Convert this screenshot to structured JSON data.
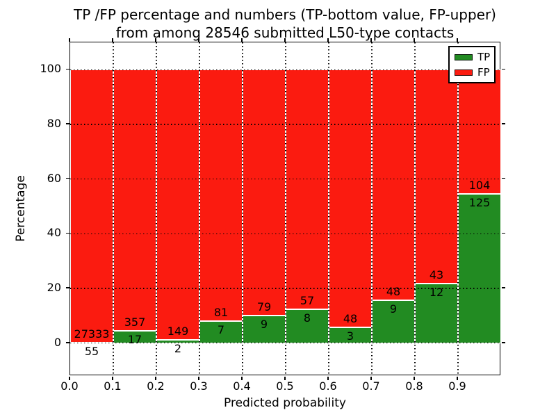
{
  "title": {
    "line1": "TP /FP percentage and numbers (TP-bottom value, FP-upper)",
    "line2": "from among 28546 submitted L50-type contacts"
  },
  "chart_data": {
    "type": "bar",
    "stacked": true,
    "normalized": "each bin scaled to 100%",
    "title": "TP /FP percentage and numbers (TP-bottom value, FP-upper) from among 28546 submitted L50-type contacts",
    "xlabel": "Predicted probability",
    "ylabel": "Percentage",
    "total_contacts": 28546,
    "bin_width": 0.1,
    "bin_starts": [
      0.0,
      0.1,
      0.2,
      0.3,
      0.4,
      0.5,
      0.6,
      0.7,
      0.8,
      0.9
    ],
    "series": [
      {
        "name": "TP",
        "color": "#228b22",
        "values": [
          55,
          17,
          2,
          7,
          9,
          8,
          3,
          9,
          12,
          125
        ]
      },
      {
        "name": "FP",
        "color": "#fb1b10",
        "values": [
          27333,
          357,
          149,
          81,
          79,
          57,
          48,
          48,
          43,
          104
        ]
      }
    ],
    "tp_percent_of_bin": [
      0.2,
      4.55,
      1.32,
      7.95,
      10.23,
      12.31,
      5.88,
      15.79,
      21.82,
      54.59
    ],
    "x_tick_labels": [
      "0.0",
      "0.1",
      "0.2",
      "0.3",
      "0.4",
      "0.5",
      "0.6",
      "0.7",
      "0.8",
      "0.9"
    ],
    "y_ticks": [
      0,
      20,
      40,
      60,
      80,
      100
    ],
    "xlim": [
      0.0,
      1.0
    ],
    "ylim": [
      -12,
      110
    ],
    "grid": true,
    "grid_style": "dotted black, drawn over bars",
    "bar_edge_color": "#ffffff",
    "legend": {
      "position": "upper right",
      "entries": [
        {
          "label": "TP",
          "color": "#228b22"
        },
        {
          "label": "FP",
          "color": "#fb1b10"
        }
      ]
    }
  }
}
